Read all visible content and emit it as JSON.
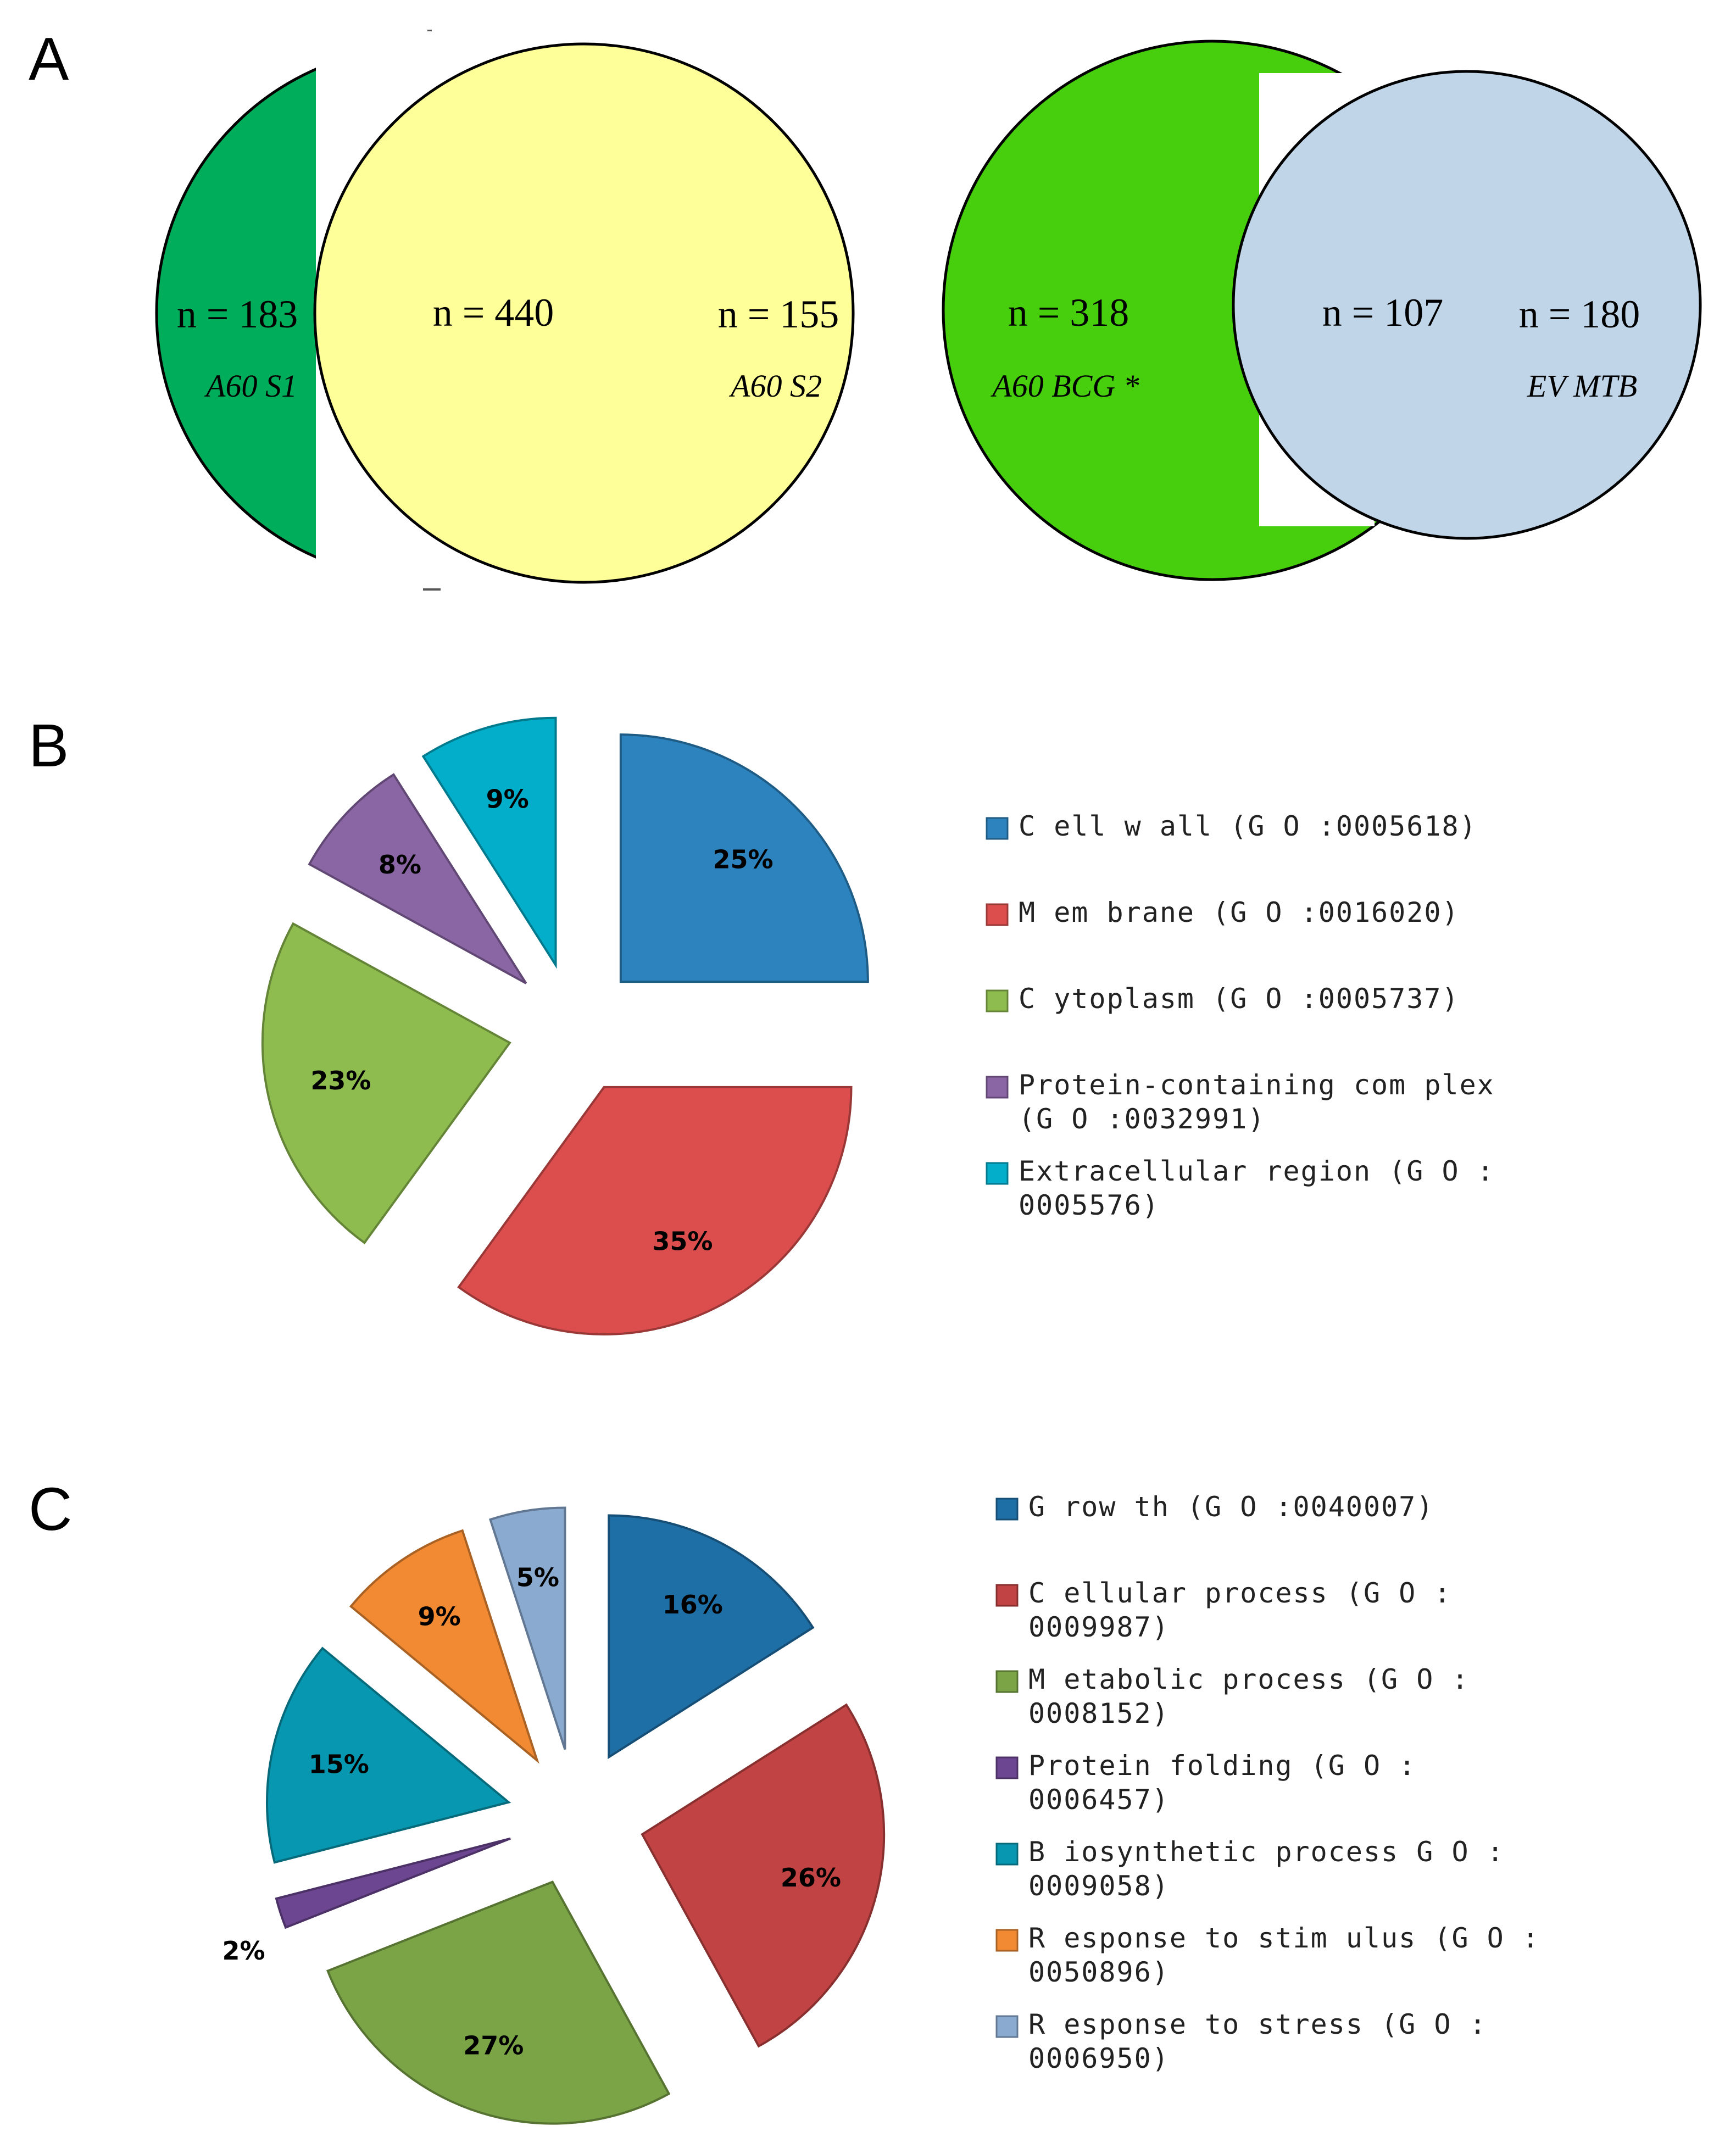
{
  "panels": {
    "a": "A",
    "b": "B",
    "c": "C"
  },
  "venn": [
    {
      "left": {
        "name": "A60 S1",
        "count_label": "n = 183",
        "color": "#00AD5A"
      },
      "overlap": {
        "count_label": "n = 440"
      },
      "right": {
        "name": "A60 S2",
        "count_label": "n = 155",
        "color": "#FFFF99"
      }
    },
    {
      "left": {
        "name": "A60 BCG *",
        "count_label": "n = 318",
        "color": "#47CF0E"
      },
      "overlap": {
        "count_label": "n = 107"
      },
      "right": {
        "name": "EV MTB",
        "count_label": "n = 180",
        "color": "#C0D5E8"
      }
    }
  ],
  "chart_data": [
    {
      "type": "pie",
      "panel": "B",
      "title": "",
      "legend_position": "right",
      "slices": [
        {
          "label": "Cell wall (GO:0005618)",
          "legend_lines": [
            "C ell w all (G O :0005618)"
          ],
          "value": 25,
          "display": "25%",
          "color": "#2C83BE"
        },
        {
          "label": "Membrane (GO:0016020)",
          "legend_lines": [
            "M em brane (G O :0016020)"
          ],
          "value": 35,
          "display": "35%",
          "color": "#DC4E4E"
        },
        {
          "label": "Cytoplasm (GO:0005737)",
          "legend_lines": [
            "C ytoplasm  (G O :0005737)"
          ],
          "value": 23,
          "display": "23%",
          "color": "#8FBC4F"
        },
        {
          "label": "Protein-containing complex (GO:0032991)",
          "legend_lines": [
            "Protein-containing com plex",
            "(G O :0032991)"
          ],
          "value": 8,
          "display": "8%",
          "color": "#8A66A5"
        },
        {
          "label": "Extracellular region (GO:0005576)",
          "legend_lines": [
            "Extracellular region (G O :",
            "0005576)"
          ],
          "value": 9,
          "display": "9%",
          "color": "#02AEC9"
        }
      ]
    },
    {
      "type": "pie",
      "panel": "C",
      "title": "",
      "legend_position": "right",
      "slices": [
        {
          "label": "Growth (GO:0040007)",
          "legend_lines": [
            "G row th (G O :0040007)"
          ],
          "value": 16,
          "display": "16%",
          "color": "#1F6FA7"
        },
        {
          "label": "Cellular process (GO:0009987)",
          "legend_lines": [
            "C ellular process (G O :",
            "0009987)"
          ],
          "value": 26,
          "display": "26%",
          "color": "#C24343"
        },
        {
          "label": "Metabolic process (GO:0008152)",
          "legend_lines": [
            "M etabolic process (G O :",
            "0008152)"
          ],
          "value": 27,
          "display": "27%",
          "color": "#7BA447"
        },
        {
          "label": "Protein folding (GO:0006457)",
          "legend_lines": [
            "Protein folding (G O :",
            "0006457)"
          ],
          "value": 2,
          "display": "2%",
          "color": "#6C4691"
        },
        {
          "label": "Biosynthetic process GO:0009058",
          "legend_lines": [
            "B iosynthetic process G O :",
            "0009058)"
          ],
          "value": 15,
          "display": "15%",
          "color": "#0897B0"
        },
        {
          "label": "Response to stimulus (GO:0050896)",
          "legend_lines": [
            "R esponse to stim ulus (G O :",
            "0050896)"
          ],
          "value": 9,
          "display": "9%",
          "color": "#F18A33"
        },
        {
          "label": "Response to stress (GO:0006950)",
          "legend_lines": [
            "R esponse to stress (G O :",
            "0006950)"
          ],
          "value": 5,
          "display": "5%",
          "color": "#8BAAD0"
        }
      ]
    }
  ]
}
